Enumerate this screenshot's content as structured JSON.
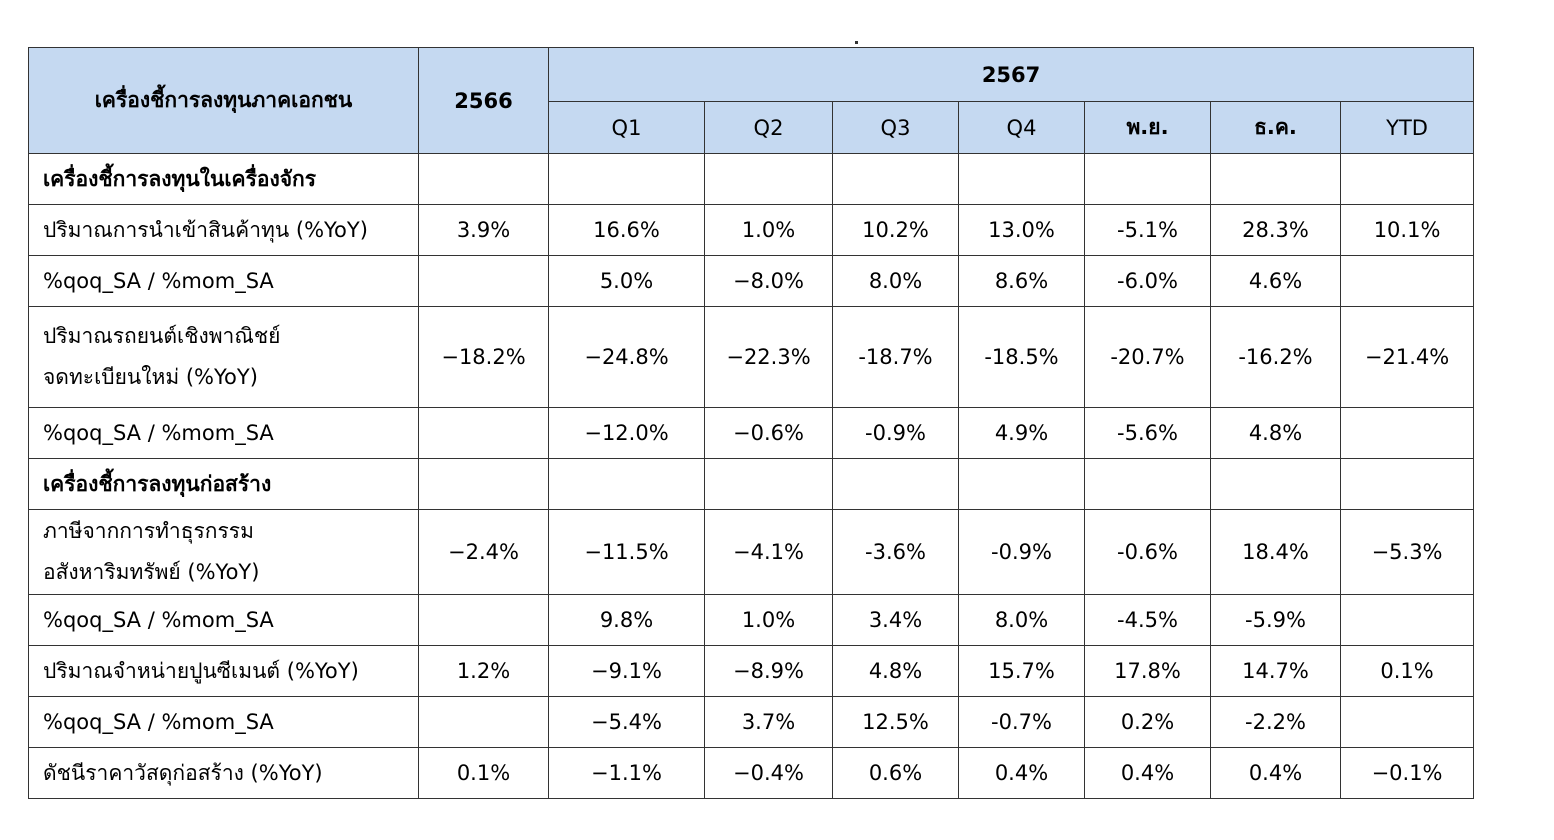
{
  "header": {
    "indicator_label": "เครื่องชี้การลงทุนภาคเอกชน",
    "year_prev": "2566",
    "year_curr": "2567",
    "periods": [
      "Q1",
      "Q2",
      "Q3",
      "Q4",
      "พ.ย.",
      "ธ.ค.",
      "YTD"
    ]
  },
  "rows": [
    {
      "type": "section",
      "label": "เครื่องชี้การลงทุนในเครื่องจักร",
      "values": [
        "",
        "",
        "",
        "",
        "",
        "",
        "",
        ""
      ]
    },
    {
      "type": "data",
      "label": "ปริมาณการนำเข้าสินค้าทุน (%YoY)",
      "values": [
        "3.9%",
        "16.6%",
        "1.0%",
        "10.2%",
        "13.0%",
        "-5.1%",
        "28.3%",
        "10.1%"
      ]
    },
    {
      "type": "data",
      "label": "%qoq_SA / %mom_SA",
      "values": [
        "",
        "5.0%",
        "−8.0%",
        "8.0%",
        "8.6%",
        "-6.0%",
        "4.6%",
        ""
      ]
    },
    {
      "type": "data2",
      "label": "ปริมาณรถยนต์เชิงพาณิชย์",
      "label2": "จดทะเบียนใหม่ (%YoY)",
      "values": [
        "−18.2%",
        "−24.8%",
        "−22.3%",
        "-18.7%",
        "-18.5%",
        "-20.7%",
        "-16.2%",
        "−21.4%"
      ]
    },
    {
      "type": "data",
      "label": "%qoq_SA / %mom_SA",
      "values": [
        "",
        "−12.0%",
        "−0.6%",
        "-0.9%",
        "4.9%",
        "-5.6%",
        "4.8%",
        ""
      ]
    },
    {
      "type": "section",
      "label": "เครื่องชี้การลงทุนก่อสร้าง",
      "values": [
        "",
        "",
        "",
        "",
        "",
        "",
        "",
        ""
      ]
    },
    {
      "type": "data2",
      "label": "ภาษีจากการทำธุรกรรม",
      "label2": "อสังหาริมทรัพย์ (%YoY)",
      "values": [
        "−2.4%",
        "−11.5%",
        "−4.1%",
        "-3.6%",
        "-0.9%",
        "-0.6%",
        "18.4%",
        "−5.3%"
      ]
    },
    {
      "type": "data",
      "label": "%qoq_SA / %mom_SA",
      "values": [
        "",
        "9.8%",
        "1.0%",
        "3.4%",
        "8.0%",
        "-4.5%",
        "-5.9%",
        ""
      ]
    },
    {
      "type": "data",
      "label": "ปริมาณจำหน่ายปูนซีเมนต์ (%YoY)",
      "values": [
        "1.2%",
        "−9.1%",
        "−8.9%",
        "4.8%",
        "15.7%",
        "17.8%",
        "14.7%",
        "0.1%"
      ]
    },
    {
      "type": "data",
      "label": "%qoq_SA / %mom_SA",
      "values": [
        "",
        "−5.4%",
        "3.7%",
        "12.5%",
        "-0.7%",
        "0.2%",
        "-2.2%",
        ""
      ]
    },
    {
      "type": "data",
      "label": "ดัชนีราคาวัสดุก่อสร้าง (%YoY)",
      "values": [
        "0.1%",
        "−1.1%",
        "−0.4%",
        "0.6%",
        "0.4%",
        "0.4%",
        "0.4%",
        "−0.1%"
      ]
    }
  ]
}
